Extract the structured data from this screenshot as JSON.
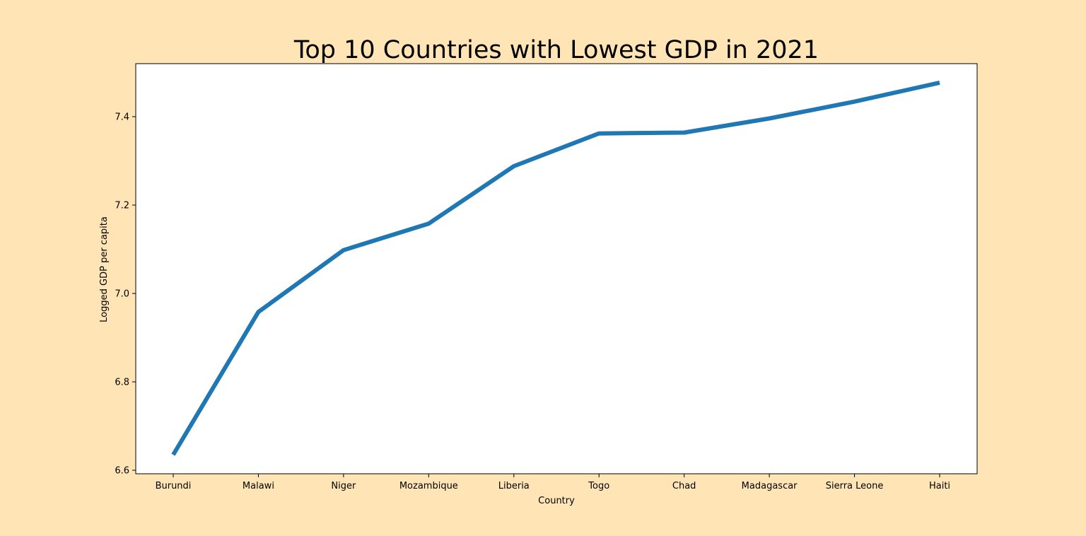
{
  "colors": {
    "figure_background": "#FFE5B5",
    "axes_background": "#FFFFFF",
    "line": "#1F77B4"
  },
  "chart_data": {
    "type": "line",
    "title": "Top 10 Countries with Lowest GDP in 2021",
    "xlabel": "Country",
    "ylabel": "Logged GDP per capita",
    "categories": [
      "Burundi",
      "Malawi",
      "Niger",
      "Mozambique",
      "Liberia",
      "Togo",
      "Chad",
      "Madagascar",
      "Sierra Leone",
      "Haiti"
    ],
    "values": [
      6.635,
      6.958,
      7.098,
      7.158,
      7.288,
      7.362,
      7.364,
      7.396,
      7.434,
      7.477
    ],
    "ylim": [
      6.592,
      7.52
    ],
    "yticks": [
      "6.6",
      "6.8",
      "7.0",
      "7.2",
      "7.4"
    ],
    "grid": false,
    "legend": "none"
  }
}
